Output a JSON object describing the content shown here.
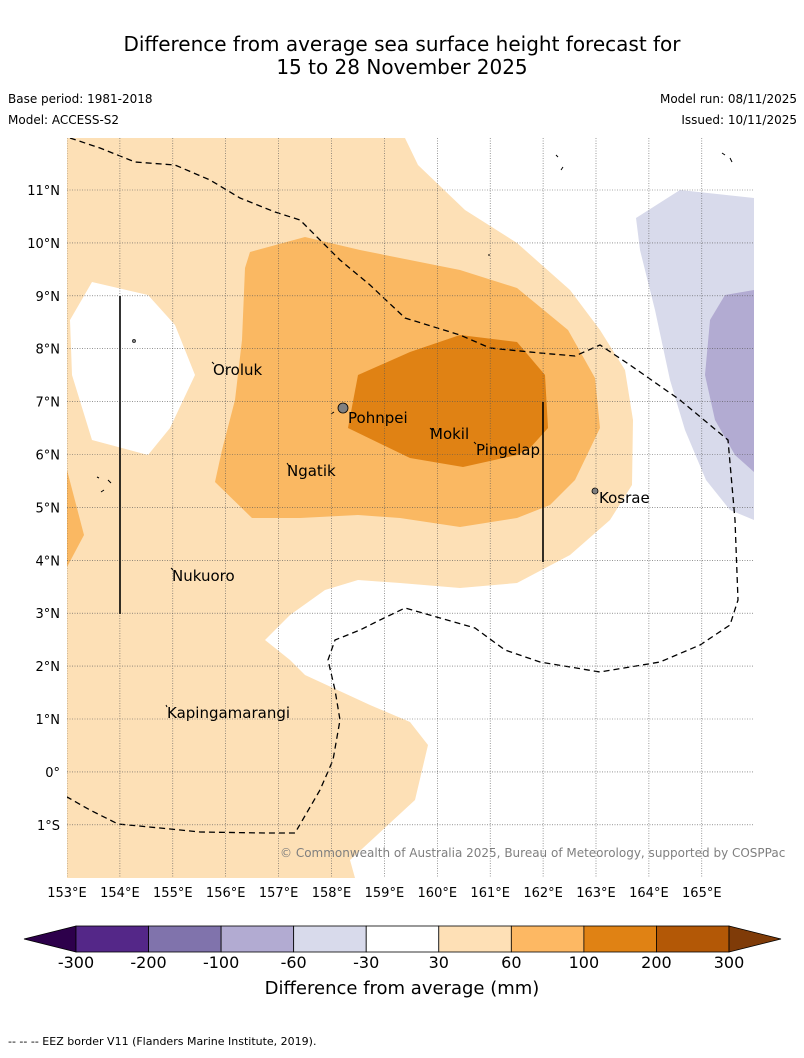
{
  "title": {
    "line1": "Difference from average sea surface height forecast for",
    "line2": "15 to 28 November 2025"
  },
  "meta": {
    "base_period": "Base period: 1981-2018",
    "model": "Model: ACCESS-S2",
    "model_run": "Model run: 08/11/2025",
    "issued": "Issued: 10/11/2025"
  },
  "map": {
    "lon_labels": [
      "153°E",
      "154°E",
      "155°E",
      "156°E",
      "157°E",
      "158°E",
      "159°E",
      "160°E",
      "161°E",
      "162°E",
      "163°E",
      "164°E",
      "165°E"
    ],
    "lat_labels": [
      "11°N",
      "10°N",
      "9°N",
      "8°N",
      "7°N",
      "6°N",
      "5°N",
      "4°N",
      "3°N",
      "2°N",
      "1°N",
      "0°",
      "1°S"
    ],
    "places": [
      "Oroluk",
      "Pohnpei",
      "Mokil",
      "Pingelap",
      "Ngatik",
      "Kosrae",
      "Nukuoro",
      "Kapingamarangi"
    ],
    "copyright": "© Commonwealth of Australia 2025, Bureau of Meteorology, supported by COSPPac",
    "colors": {
      "c30_60": "#fde0b6",
      "c60_100": "#fab862",
      "c100_200": "#e08214",
      "cneg60_30": "#d8daeb",
      "cneg100_60": "#b2abd2"
    }
  },
  "colorbar": {
    "ticks": [
      "-300",
      "-200",
      "-100",
      "-60",
      "-30",
      "30",
      "60",
      "100",
      "200",
      "300"
    ],
    "colors": [
      "#542788",
      "#8073ac",
      "#b2abd2",
      "#d8daeb",
      "#ffffff",
      "#fee0b6",
      "#fdb863",
      "#e08214",
      "#b35806"
    ],
    "under_color": "#2d004b",
    "over_color": "#7f3b08",
    "title": "Difference from average (mm)"
  },
  "footer": "--  --  -- EEZ border V11 (Flanders Marine Institute, 2019)."
}
